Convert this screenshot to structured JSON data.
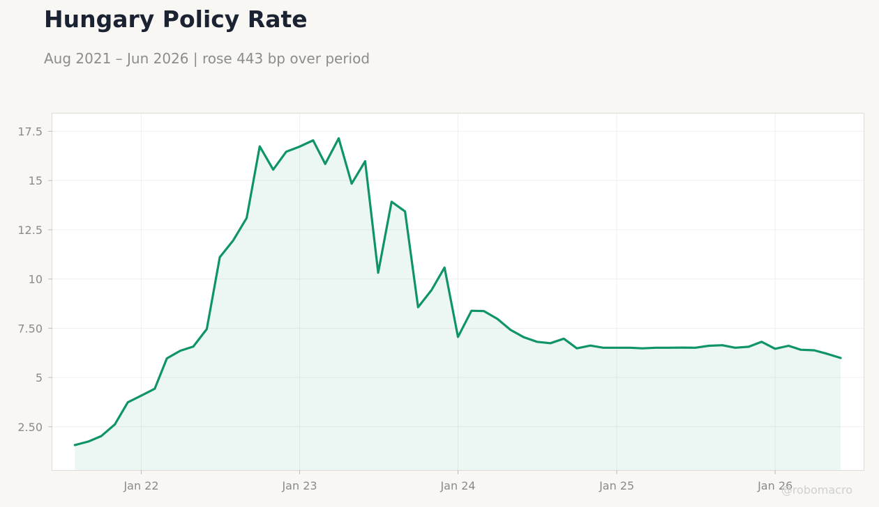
{
  "header": {
    "title": "Hungary Policy Rate",
    "subtitle": "Aug 2021 – Jun 2026 | rose 443 bp over period"
  },
  "watermark": "@robomacro",
  "colors": {
    "line": "#0e9467",
    "fill": "#0e9467",
    "grid": "#efefef",
    "background": "#f8f7f4",
    "plot_background": "#ffffff"
  },
  "chart_data": {
    "type": "area",
    "title": "Hungary Policy Rate",
    "xlabel": "",
    "ylabel": "",
    "grid": true,
    "legend": "none",
    "x_ticks": [
      {
        "label": "Jan 22",
        "date": "2022-01"
      },
      {
        "label": "Jan 23",
        "date": "2023-01"
      },
      {
        "label": "Jan 24",
        "date": "2024-01"
      },
      {
        "label": "Jan 25",
        "date": "2025-01"
      },
      {
        "label": "Jan 26",
        "date": "2026-01"
      }
    ],
    "y_ticks": [
      {
        "label": "2.50",
        "value": 2.5
      },
      {
        "label": "5",
        "value": 5
      },
      {
        "label": "7.50",
        "value": 7.5
      },
      {
        "label": "10",
        "value": 10
      },
      {
        "label": "12.5",
        "value": 12.5
      },
      {
        "label": "15",
        "value": 15
      },
      {
        "label": "17.5",
        "value": 17.5
      }
    ],
    "ylim": [
      0.3,
      18.4
    ],
    "xlim": [
      "2021-06-10",
      "2026-07-24"
    ],
    "series": [
      {
        "x": [
          "2021-08",
          "2021-09",
          "2021-10",
          "2021-11",
          "2021-12",
          "2022-01",
          "2022-02",
          "2022-03",
          "2022-04",
          "2022-05",
          "2022-06",
          "2022-07",
          "2022-08",
          "2022-09",
          "2022-10",
          "2022-11",
          "2022-12",
          "2023-01",
          "2023-02",
          "2023-03",
          "2023-04",
          "2023-05",
          "2023-06",
          "2023-07",
          "2023-08",
          "2023-09",
          "2023-10",
          "2023-11",
          "2023-12",
          "2024-01",
          "2024-02",
          "2024-03",
          "2024-04",
          "2024-05",
          "2024-06",
          "2024-07",
          "2024-08",
          "2024-09",
          "2024-10",
          "2024-11",
          "2024-12",
          "2025-01",
          "2025-02",
          "2025-03",
          "2025-04",
          "2025-05",
          "2025-06",
          "2025-07",
          "2025-08",
          "2025-09",
          "2025-10",
          "2025-11",
          "2025-12",
          "2026-01",
          "2026-02",
          "2026-03",
          "2026-04",
          "2026-05",
          "2026-06"
        ],
        "values": [
          1.57,
          1.75,
          2.03,
          2.62,
          3.74,
          4.08,
          4.43,
          5.97,
          6.36,
          6.57,
          7.46,
          11.11,
          11.96,
          13.1,
          16.73,
          15.55,
          16.46,
          16.72,
          17.04,
          15.84,
          17.14,
          14.84,
          15.98,
          10.32,
          13.92,
          13.43,
          8.57,
          9.44,
          10.58,
          7.06,
          8.39,
          8.37,
          7.97,
          7.42,
          7.04,
          6.81,
          6.74,
          6.97,
          6.48,
          6.62,
          6.51,
          6.51,
          6.51,
          6.48,
          6.51,
          6.51,
          6.52,
          6.51,
          6.61,
          6.64,
          6.51,
          6.56,
          6.81,
          6.46,
          6.61,
          6.41,
          6.38,
          6.2,
          5.99
        ]
      }
    ]
  }
}
